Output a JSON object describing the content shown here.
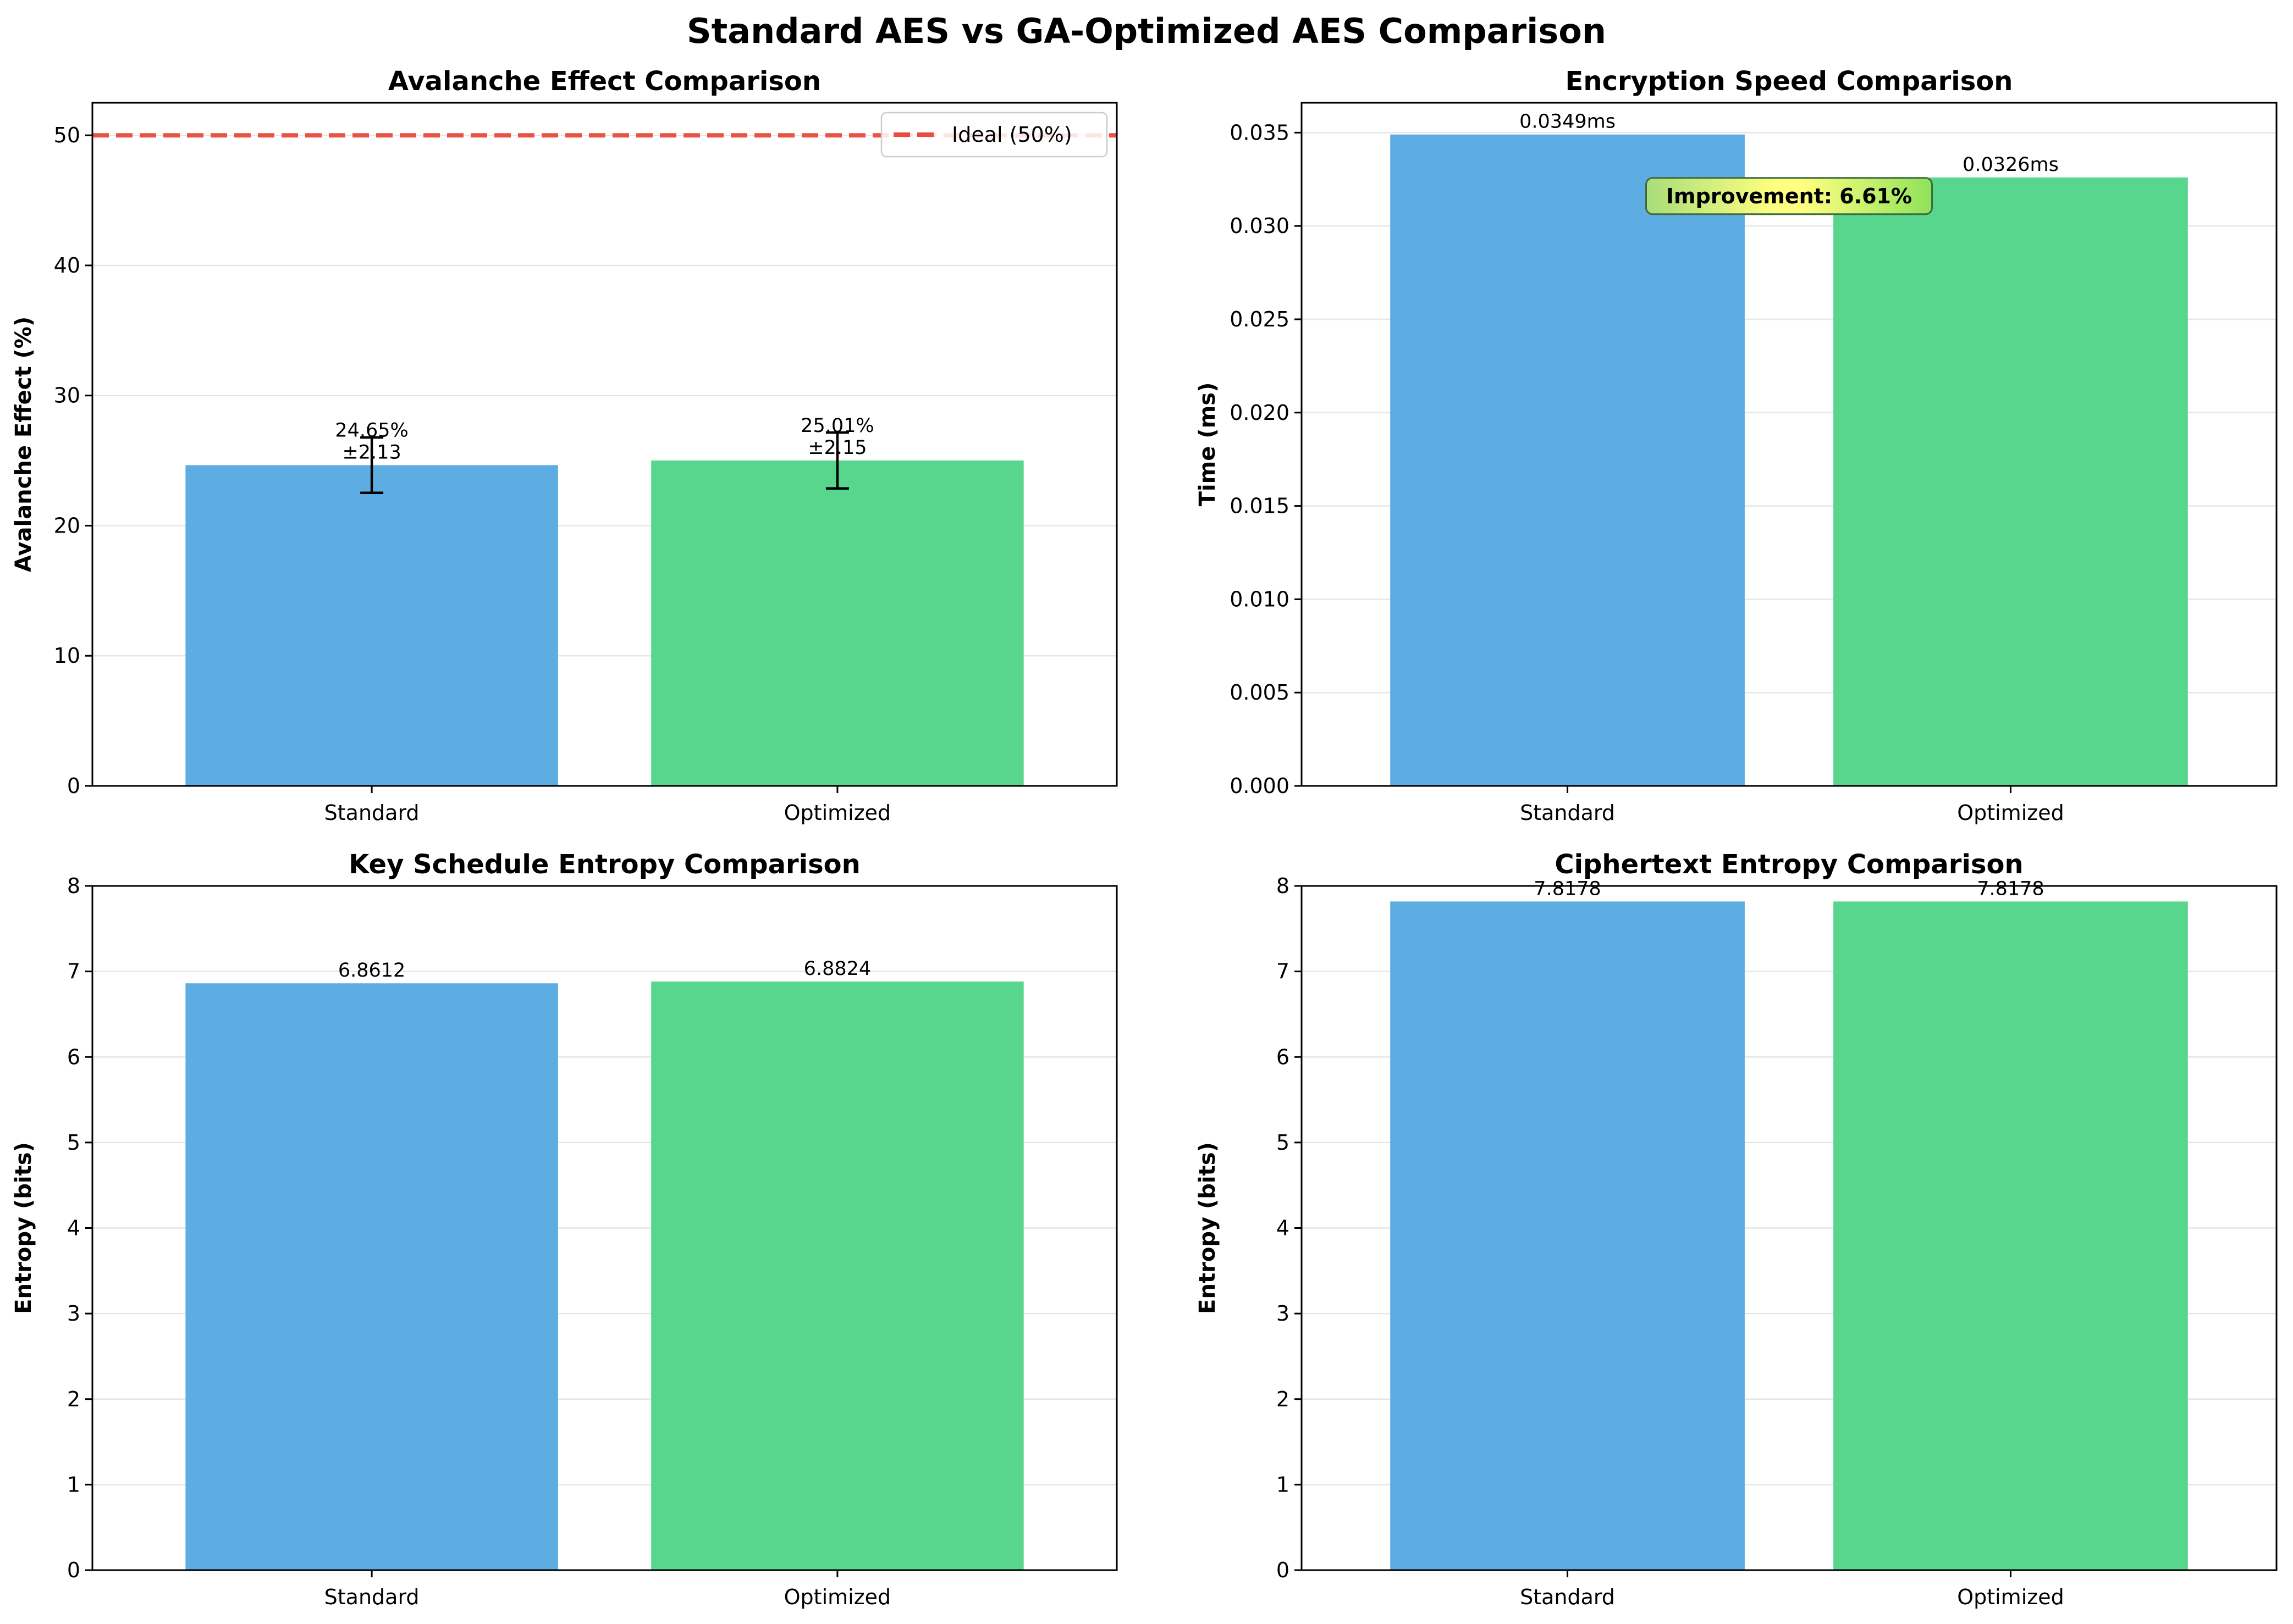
{
  "figure": {
    "suptitle": "Standard AES vs GA-Optimized AES Comparison"
  },
  "colors": {
    "standard": "#5dade2",
    "optimized": "#58d68d",
    "ideal_line": "#e74c3c",
    "grid": "#e6e6e6"
  },
  "chart_data": [
    {
      "type": "bar",
      "title": "Avalanche Effect Comparison",
      "xlabel": "",
      "ylabel": "Avalanche Effect (%)",
      "categories": [
        "Standard",
        "Optimized"
      ],
      "values": [
        24.65,
        25.01
      ],
      "errors": [
        2.13,
        2.15
      ],
      "data_labels": [
        "24.65%\n±2.13",
        "25.01%\n±2.15"
      ],
      "ylim": [
        0,
        52.5
      ],
      "yticks": [
        0,
        10,
        20,
        30,
        40,
        50
      ],
      "ytick_labels": [
        "0",
        "10",
        "20",
        "30",
        "40",
        "50"
      ],
      "reference_line": {
        "value": 50,
        "label": "Ideal (50%)",
        "style": "dashed"
      },
      "legend": {
        "entries": [
          "Ideal (50%)"
        ],
        "position": "top-right"
      },
      "grid": "y"
    },
    {
      "type": "bar",
      "title": "Encryption Speed Comparison",
      "xlabel": "",
      "ylabel": "Time (ms)",
      "categories": [
        "Standard",
        "Optimized"
      ],
      "values": [
        0.0349,
        0.0326
      ],
      "data_labels": [
        "0.0349ms",
        "0.0326ms"
      ],
      "ylim": [
        0,
        0.0366
      ],
      "yticks": [
        0,
        0.005,
        0.01,
        0.015,
        0.02,
        0.025,
        0.03,
        0.035
      ],
      "ytick_labels": [
        "0.000",
        "0.005",
        "0.010",
        "0.015",
        "0.020",
        "0.025",
        "0.030",
        "0.035"
      ],
      "annotation": "Improvement: 6.61%",
      "grid": "y"
    },
    {
      "type": "bar",
      "title": "Key Schedule Entropy Comparison",
      "xlabel": "",
      "ylabel": "Entropy (bits)",
      "categories": [
        "Standard",
        "Optimized"
      ],
      "values": [
        6.8612,
        6.8824
      ],
      "data_labels": [
        "6.8612",
        "6.8824"
      ],
      "ylim": [
        0,
        8
      ],
      "yticks": [
        0,
        1,
        2,
        3,
        4,
        5,
        6,
        7,
        8
      ],
      "ytick_labels": [
        "0",
        "1",
        "2",
        "3",
        "4",
        "5",
        "6",
        "7",
        "8"
      ],
      "grid": "y"
    },
    {
      "type": "bar",
      "title": "Ciphertext Entropy Comparison",
      "xlabel": "",
      "ylabel": "Entropy (bits)",
      "categories": [
        "Standard",
        "Optimized"
      ],
      "values": [
        7.8178,
        7.8178
      ],
      "data_labels": [
        "7.8178",
        "7.8178"
      ],
      "ylim": [
        0,
        8
      ],
      "yticks": [
        0,
        1,
        2,
        3,
        4,
        5,
        6,
        7,
        8
      ],
      "ytick_labels": [
        "0",
        "1",
        "2",
        "3",
        "4",
        "5",
        "6",
        "7",
        "8"
      ],
      "grid": "y"
    }
  ]
}
